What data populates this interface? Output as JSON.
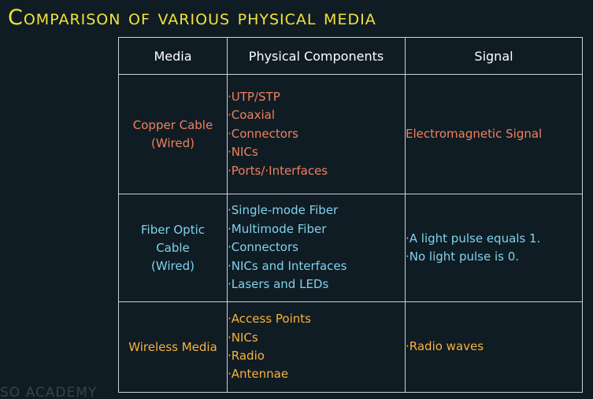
{
  "title": "Comparison of various physical media",
  "watermark": "SO ACADEMY",
  "table": {
    "headers": [
      "Media",
      "Physical Components",
      "Signal"
    ],
    "rows": [
      {
        "media": [
          "Copper Cable",
          "(Wired)"
        ],
        "components": [
          "·UTP/STP",
          "·Coaxial",
          "·Connectors",
          "·NICs",
          "·Ports/·Interfaces"
        ],
        "signal": [
          "Electromagnetic Signal"
        ],
        "color": "#f0805c"
      },
      {
        "media": [
          "Fiber Optic",
          "Cable",
          "(Wired)"
        ],
        "components": [
          "·Single-mode Fiber",
          "·Multimode Fiber",
          "·Connectors",
          "·NICs and Interfaces",
          "·Lasers and LEDs"
        ],
        "signal": [
          "·A light pulse equals 1.",
          "·No light pulse is 0."
        ],
        "color": "#7fd3ee"
      },
      {
        "media": [
          "Wireless Media"
        ],
        "components": [
          "·Access Points",
          "·NICs",
          "·Radio",
          "·Antennae"
        ],
        "signal": [
          "·Radio waves"
        ],
        "color": "#f7b23a"
      }
    ]
  },
  "colors": {
    "background": "#101c24",
    "title": "#f2e23a",
    "border": "#c9d2db",
    "header_text": "#ffffff"
  }
}
